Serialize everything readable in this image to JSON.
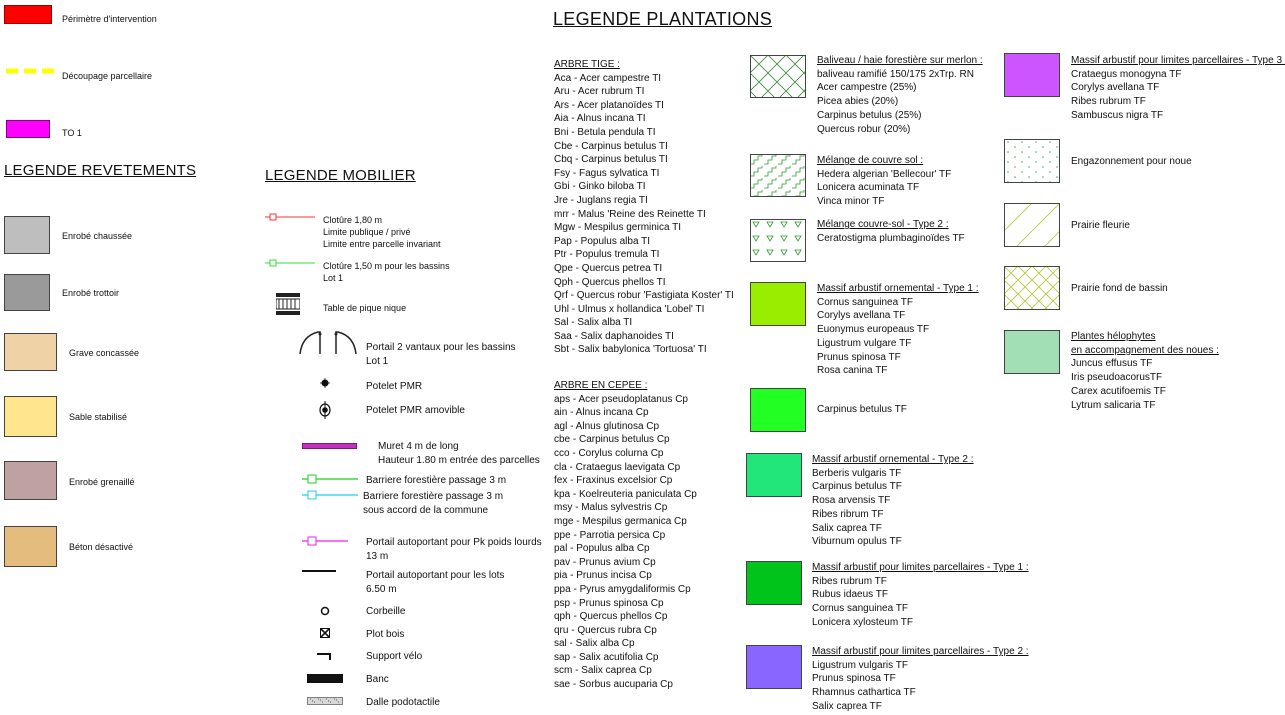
{
  "top_legend": [
    {
      "label": "Périmètre d'intervention",
      "color": "#ff0000",
      "style": "fill"
    },
    {
      "label": "Découpage parcellaire",
      "color": "#ffff00",
      "style": "dashed"
    },
    {
      "label": "TO 1",
      "color": "#ff00ff",
      "style": "fill"
    }
  ],
  "revetements": {
    "title": "LEGENDE REVETEMENTS",
    "items": [
      {
        "label": "Enrobé  chaussée",
        "color": "#bebebe"
      },
      {
        "label": "Enrobé trottoir",
        "color": "#9a9a9a"
      },
      {
        "label": "Grave concassée",
        "color": "#efd3a6"
      },
      {
        "label": "Sable stabilisé",
        "color": "#ffe58e"
      },
      {
        "label": "Enrobé grenaillé",
        "color": "#bfa1a1"
      },
      {
        "label": "Béton désactivé",
        "color": "#e3bc7e"
      }
    ]
  },
  "mobilier": {
    "title": "LEGENDE MOBILIER",
    "items": [
      {
        "icon": "red-fence-line-icon",
        "lines": [
          "Clotûre 1,80 m",
          "Limite publique / privé",
          "Limite entre parcelle invariant"
        ]
      },
      {
        "icon": "green-fence-line-icon",
        "lines": [
          "Clotûre 1,50 m pour les bassins",
          "Lot 1"
        ]
      },
      {
        "icon": "picnic-table-icon",
        "lines": [
          "Table de pique nique"
        ]
      },
      {
        "icon": "double-gate-icon",
        "lines": [
          "Portail 2 vantaux pour les bassins",
          "Lot 1"
        ]
      },
      {
        "icon": "pmr-post-icon",
        "lines": [
          "Potelet PMR"
        ]
      },
      {
        "icon": "removable-pmr-post-icon",
        "lines": [
          "Potelet PMR amovible"
        ]
      },
      {
        "icon": "magenta-wall-icon",
        "lines": [
          "Muret 4 m de long",
          "Hauteur 1.80 m entrée des parcelles"
        ]
      },
      {
        "icon": "green-barrier-icon",
        "lines": [
          "Barriere forestière passage 3 m"
        ]
      },
      {
        "icon": "cyan-barrier-icon",
        "lines": [
          "Barriere forestière passage 3 m",
          "sous accord de la commune"
        ]
      },
      {
        "icon": "magenta-sliding-gate-icon",
        "lines": [
          "Portail autoportant  pour Pk poids lourds",
          "13 m"
        ]
      },
      {
        "icon": "black-sliding-gate-icon",
        "lines": [
          "Portail autoportant  pour  les lots",
          "6.50 m"
        ]
      },
      {
        "icon": "basket-icon",
        "lines": [
          "Corbeille"
        ]
      },
      {
        "icon": "wood-bollard-icon",
        "lines": [
          "Plot bois"
        ]
      },
      {
        "icon": "bike-rack-icon",
        "lines": [
          "Support vélo"
        ]
      },
      {
        "icon": "bench-icon",
        "lines": [
          "Banc"
        ]
      },
      {
        "icon": "tactile-paving-icon",
        "lines": [
          "Dalle podotactile"
        ]
      }
    ]
  },
  "plantations": {
    "title": "LEGENDE PLANTATIONS",
    "arbre_tige": {
      "header": "ARBRE TIGE :",
      "items": [
        "Aca - Acer campestre TI",
        "Aru - Acer rubrum TI",
        "Ars - Acer platanoïdes TI",
        "Aia - Alnus incana TI",
        "Bni - Betula pendula TI",
        "Cbe - Carpinus betulus TI",
        "Cbq - Carpinus betulus  TI",
        "Fsy - Fagus sylvatica TI",
        "Gbi - Ginko biloba TI",
        "Jre - Juglans regia TI",
        "mrr - Malus 'Reine des Reinette TI",
        "Mgw - Mespilus germinica TI",
        "Pap - Populus alba TI",
        "Ptr - Populus tremula TI",
        "Qpe - Quercus petrea TI",
        "Qph - Quercus phellos TI",
        "Qrf - Quercus robur 'Fastigiata Koster' TI",
        "Uhl - Ulmus x hollandica 'Lobel' TI",
        "Sal - Salix alba TI",
        "Saa - Salix daphanoides TI",
        "Sbt - Salix babylonica 'Tortuosa' TI"
      ]
    },
    "arbre_cepee": {
      "header": "ARBRE EN CEPEE :",
      "items": [
        "aps - Acer pseudoplatanus Cp",
        "ain - Alnus incana Cp",
        "agl - Alnus glutinosa Cp",
        "cbe - Carpinus betulus Cp",
        "cco - Corylus colurna Cp",
        "cla - Crataegus laevigata Cp",
        "fex - Fraxinus excelsior Cp",
        "kpa - Koelreuteria paniculata Cp",
        "msy - Malus sylvestris Cp",
        "mge - Mespilus germanica Cp",
        "ppe - Parrotia persica Cp",
        "pal - Populus alba Cp",
        "pav - Prunus avium Cp",
        "pia - Prunus incisa Cp",
        "ppa - Pyrus amygdaliformis Cp",
        "psp - Prunus spinosa  Cp",
        "qph - Quercus phellos Cp",
        "qru - Quercus rubra Cp",
        "sal - Salix alba Cp",
        "sap - Salix acutifolia Cp",
        "scm - Salix caprea Cp",
        "sae - Sorbus aucuparia Cp"
      ]
    },
    "col2": [
      {
        "pattern": "diamond-hatch",
        "color": "#ffffff",
        "title": "Baliveau / haie forestière sur merlon :",
        "lines": [
          "baliveau ramifié 150/175 2xTrp. RN",
          "Acer campestre (25%)",
          "Picea abies (20%)",
          "Carpinus betulus (25%)",
          "Quercus robur  (20%)"
        ]
      },
      {
        "pattern": "zigzag",
        "color": "#ffffff",
        "title": "Mélange de couvre sol :",
        "lines": [
          "Hedera algerian 'Bellecour' TF",
          "Lonicera acuminata TF",
          "Vinca minor TF"
        ]
      },
      {
        "pattern": "triangles",
        "color": "#ffffff",
        "title": "Mélange couvre-sol - Type 2 :",
        "lines": [
          "Ceratostigma plumbaginoïdes TF"
        ]
      },
      {
        "pattern": "solid",
        "color": "#99ee00",
        "title": "Massif arbustif ornemental - Type 1 :",
        "lines": [
          "Cornus sanguinea TF",
          "Corylys avellana TF",
          "Euonymus europeaus TF",
          "Ligustrum vulgare TF",
          "Prunus spinosa TF",
          "Rosa canina TF"
        ]
      },
      {
        "pattern": "solid",
        "color": "#22ff22",
        "title": "",
        "lines": [
          "Carpinus betulus TF"
        ]
      },
      {
        "pattern": "solid",
        "color": "#22e67a",
        "title": "Massif arbustif ornemental - Type 2 :",
        "lines": [
          "Berberis vulgaris TF",
          "Carpinus betulus TF",
          "Rosa arvensis TF",
          "Ribes ribrum TF",
          "Salix caprea TF",
          " Viburnum opulus TF"
        ]
      },
      {
        "pattern": "solid",
        "color": "#00c41a",
        "title": "Massif arbustif pour limites parcellaires - Type 1 :",
        "lines": [
          "Ribes rubrum TF",
          "Rubus idaeus TF",
          "Cornus sanguinea TF",
          "Lonicera xylosteum TF"
        ]
      },
      {
        "pattern": "solid",
        "color": "#8866ff",
        "title": "Massif arbustif pour limites parcellaires - Type 2  :",
        "lines": [
          "Ligustrum vulgaris TF",
          "Prunus spinosa TF",
          "Rhamnus cathartica TF",
          "Salix caprea TF"
        ]
      }
    ],
    "col3": [
      {
        "pattern": "solid",
        "color": "#cc55ff",
        "title": "Massif arbustif pour limites parcellaires - Type 3 :",
        "lines": [
          "Crataegus monogyna TF",
          "Corylys avellana TF",
          "Ribes rubrum TF",
          "Sambuscus nigra TF"
        ]
      },
      {
        "pattern": "dots",
        "color": "#ffffff",
        "title": "",
        "lines": [
          "Engazonnement pour noue"
        ]
      },
      {
        "pattern": "diagonal-sparse",
        "color": "#ffffff",
        "title": "",
        "lines": [
          "Prairie fleurie"
        ]
      },
      {
        "pattern": "cross-hatch-yellow",
        "color": "#ffffff",
        "title": "",
        "lines": [
          "Prairie fond de bassin"
        ]
      },
      {
        "pattern": "solid",
        "color": "#a3dfb4",
        "title": "Plantes hélophytes",
        "title2": "en accompagnement des noues :",
        "lines": [
          "Juncus effusus TF",
          "Iris pseudoacorusTF",
          "Carex acutifoemis  TF",
          "Lytrum salicaria TF"
        ]
      }
    ]
  }
}
